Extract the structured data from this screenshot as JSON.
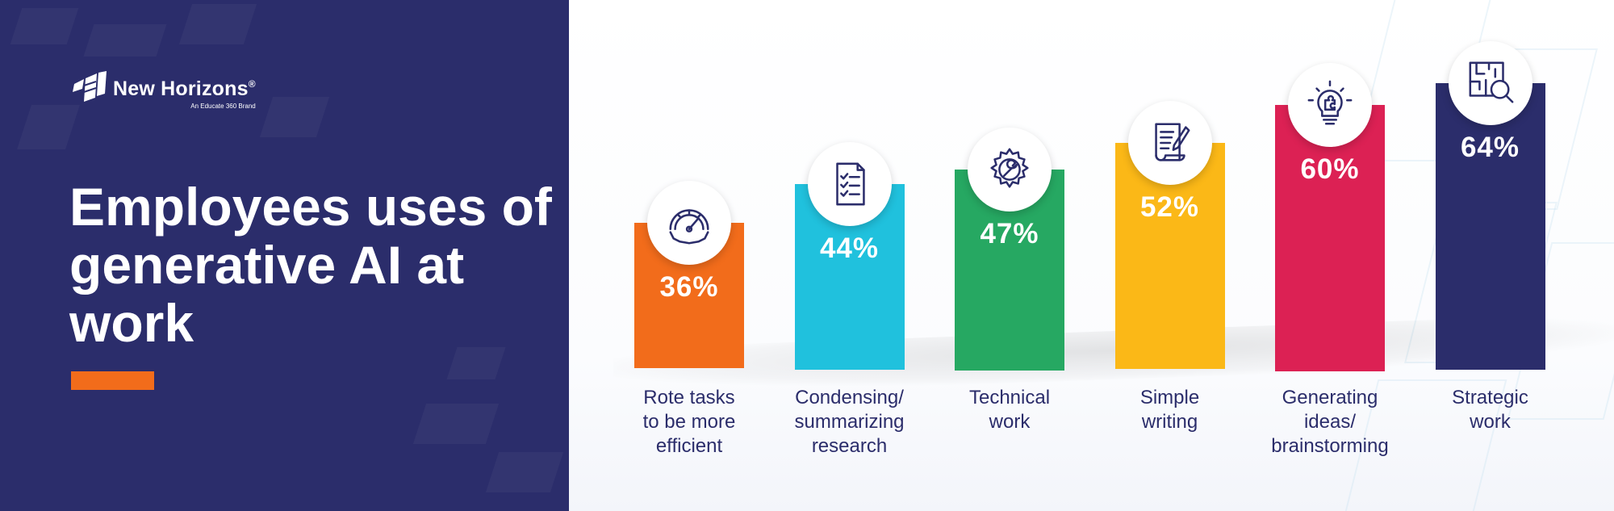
{
  "brand": {
    "name": "New Horizons",
    "registered": "®",
    "tagline": "An Educate 360 Brand"
  },
  "headline": "Employees uses of generative AI at work",
  "colors": {
    "panel": "#2b2d6b",
    "accent": "#f26c1b",
    "label": "#2b2d6b"
  },
  "chart_data": {
    "type": "bar",
    "title": "Employees uses of generative AI at work",
    "xlabel": "",
    "ylabel": "",
    "ylim": [
      0,
      100
    ],
    "grid": false,
    "legend": "none",
    "categories": [
      "Rote tasks to be more efficient",
      "Condensing/ summarizing research",
      "Technical work",
      "Simple writing",
      "Generating ideas/ brainstorming",
      "Strategic work"
    ],
    "values": [
      36,
      44,
      47,
      52,
      60,
      64
    ],
    "value_labels": [
      "36%",
      "44%",
      "47%",
      "52%",
      "60%",
      "64%"
    ],
    "label_lines": [
      [
        "Rote tasks",
        "to be more",
        "efficient"
      ],
      [
        "Condensing/",
        "summarizing",
        "research"
      ],
      [
        "Technical",
        "work"
      ],
      [
        "Simple",
        "writing"
      ],
      [
        "Generating",
        "ideas/",
        "brainstorming"
      ],
      [
        "Strategic",
        "work"
      ]
    ],
    "bar_colors": [
      "#f26c1b",
      "#20c1dd",
      "#26a862",
      "#fbb817",
      "#dc2154",
      "#2b2d6b"
    ],
    "icons": [
      "speedometer-gear-icon",
      "checklist-icon",
      "gear-wrench-icon",
      "scroll-pen-icon",
      "lightbulb-puzzle-icon",
      "maze-magnifier-icon"
    ]
  }
}
